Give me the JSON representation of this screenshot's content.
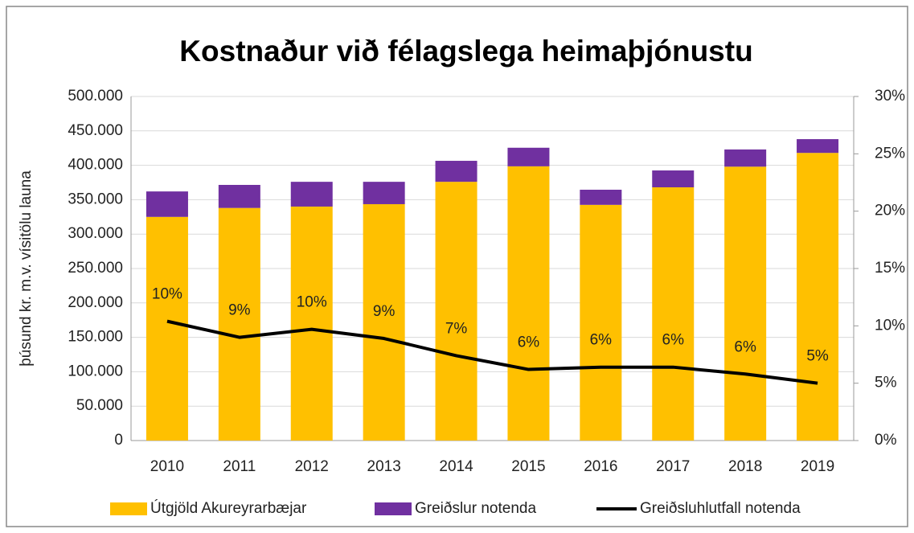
{
  "chart_data": {
    "type": "bar",
    "stacked": true,
    "title": "Kostnaður við félagslega heimaþjónustu",
    "ylabel": "þúsund kr. m.v. vísitölu launa",
    "categories": [
      "2010",
      "2011",
      "2012",
      "2013",
      "2014",
      "2015",
      "2016",
      "2017",
      "2018",
      "2019"
    ],
    "series": [
      {
        "name": "Útgjöld Akureyrarbæjar",
        "color": "#FFC000",
        "values": [
          325000,
          338000,
          340000,
          343500,
          376000,
          398500,
          342500,
          368000,
          398000,
          418000
        ]
      },
      {
        "name": "Greiðslur notenda",
        "color": "#7030A0",
        "values": [
          37000,
          33500,
          36000,
          32500,
          30500,
          27000,
          22000,
          24500,
          25000,
          20000
        ]
      },
      {
        "name": "Greiðsluhlutfall notenda",
        "color": "#000000",
        "type": "line",
        "axis": "y2",
        "values": [
          10.4,
          9.0,
          9.7,
          8.9,
          7.4,
          6.2,
          6.4,
          6.4,
          5.8,
          5.0
        ],
        "value_labels": [
          "10%",
          "9%",
          "10%",
          "9%",
          "7%",
          "6%",
          "6%",
          "6%",
          "6%",
          "5%"
        ]
      }
    ],
    "ylim": [
      0,
      500000
    ],
    "yticks": [
      0,
      {
        "value": 50000,
        "label": "50.000"
      },
      {
        "value": 100000,
        "label": "100.000"
      },
      {
        "value": 150000,
        "label": "150.000"
      },
      {
        "value": 200000,
        "label": "200.000"
      },
      {
        "value": 250000,
        "label": "250.000"
      },
      {
        "value": 300000,
        "label": "300.000"
      },
      {
        "value": 350000,
        "label": "350.000"
      },
      {
        "value": 400000,
        "label": "400.000"
      },
      {
        "value": 450000,
        "label": "450.000"
      },
      {
        "value": 500000,
        "label": "500.000"
      }
    ],
    "y2lim": [
      0,
      30
    ],
    "y2ticks": [
      {
        "value": 0,
        "label": "0%"
      },
      {
        "value": 5,
        "label": "5%"
      },
      {
        "value": 10,
        "label": "10%"
      },
      {
        "value": 15,
        "label": "15%"
      },
      {
        "value": 20,
        "label": "20%"
      },
      {
        "value": 25,
        "label": "25%"
      },
      {
        "value": 30,
        "label": "30%"
      }
    ],
    "grid": true,
    "legend": "bottom"
  }
}
